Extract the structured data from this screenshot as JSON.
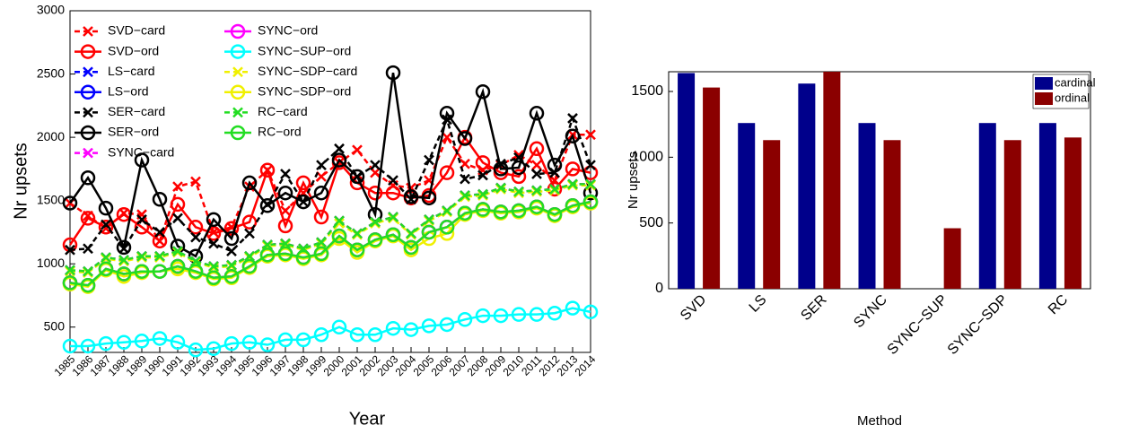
{
  "chart_data": [
    {
      "type": "line",
      "xlabel": "Year",
      "ylabel": "Nr upsets",
      "x": [
        1985,
        1986,
        1987,
        1988,
        1989,
        1990,
        1991,
        1992,
        1993,
        1994,
        1995,
        1996,
        1997,
        1998,
        1999,
        2000,
        2001,
        2002,
        2003,
        2004,
        2005,
        2006,
        2007,
        2008,
        2009,
        2010,
        2011,
        2012,
        2013,
        2014
      ],
      "xlim": [
        1985,
        2014
      ],
      "xticks": [
        1985,
        1986,
        1987,
        1988,
        1989,
        1990,
        1991,
        1992,
        1993,
        1994,
        1995,
        1996,
        1997,
        1998,
        1999,
        2000,
        2001,
        2002,
        2003,
        2004,
        2005,
        2006,
        2007,
        2008,
        2009,
        2010,
        2011,
        2012,
        2013,
        2014
      ],
      "ylim": [
        300,
        3000
      ],
      "yticks": [
        500,
        1000,
        1500,
        2000,
        2500,
        3000
      ],
      "legend": "upper left",
      "series": [
        {
          "name": "SVD−card",
          "color": "#ff0000",
          "dashed": true,
          "marker": "x",
          "values": [
            1480,
            1380,
            1280,
            1400,
            1390,
            1180,
            1610,
            1650,
            1250,
            1290,
            1610,
            1740,
            1420,
            1560,
            1690,
            1800,
            1900,
            1720,
            1620,
            1600,
            1660,
            2000,
            1790,
            1740,
            1780,
            1860,
            1780,
            1660,
            2020,
            2020
          ]
        },
        {
          "name": "SVD−ord",
          "color": "#ff0000",
          "dashed": false,
          "marker": "o",
          "values": [
            1150,
            1360,
            1290,
            1390,
            1290,
            1180,
            1470,
            1290,
            1240,
            1280,
            1330,
            1740,
            1300,
            1640,
            1370,
            1800,
            1640,
            1560,
            1560,
            1520,
            1540,
            1720,
            2000,
            1800,
            1720,
            1690,
            1910,
            1590,
            1750,
            1720
          ]
        },
        {
          "name": "LS−card",
          "color": "#0000ff",
          "dashed": true,
          "marker": "x",
          "values": [
            950,
            940,
            1050,
            1030,
            1060,
            1060,
            1100,
            1020,
            980,
            990,
            1060,
            1150,
            1160,
            1120,
            1170,
            1340,
            1240,
            1330,
            1370,
            1240,
            1350,
            1420,
            1540,
            1550,
            1600,
            1570,
            1580,
            1590,
            1630,
            1630
          ]
        },
        {
          "name": "LS−ord",
          "color": "#0000ff",
          "dashed": false,
          "marker": "o",
          "values": [
            850,
            830,
            960,
            920,
            940,
            940,
            980,
            940,
            890,
            900,
            980,
            1070,
            1080,
            1050,
            1080,
            1220,
            1110,
            1190,
            1230,
            1130,
            1250,
            1290,
            1400,
            1430,
            1410,
            1420,
            1450,
            1390,
            1460,
            1490
          ]
        },
        {
          "name": "SER−card",
          "color": "#000000",
          "dashed": true,
          "marker": "x",
          "values": [
            1110,
            1120,
            1310,
            1120,
            1350,
            1250,
            1360,
            1210,
            1160,
            1100,
            1240,
            1470,
            1710,
            1490,
            1780,
            1910,
            1690,
            1780,
            1660,
            1510,
            1820,
            2140,
            1670,
            1700,
            1790,
            1840,
            1710,
            1720,
            2150,
            1780
          ]
        },
        {
          "name": "SER−ord",
          "color": "#000000",
          "dashed": false,
          "marker": "o",
          "values": [
            1480,
            1680,
            1440,
            1130,
            1820,
            1510,
            1140,
            1060,
            1350,
            1200,
            1640,
            1460,
            1560,
            1490,
            1560,
            1820,
            1690,
            1390,
            2510,
            1530,
            1520,
            2190,
            1990,
            2360,
            1750,
            1760,
            2190,
            1780,
            2010,
            1560
          ]
        },
        {
          "name": "SYNC−card",
          "color": "#ff00ff",
          "dashed": true,
          "marker": "x",
          "values": [
            950,
            940,
            1050,
            1030,
            1060,
            1060,
            1100,
            1020,
            980,
            990,
            1060,
            1150,
            1160,
            1120,
            1170,
            1340,
            1240,
            1330,
            1370,
            1240,
            1350,
            1420,
            1540,
            1550,
            1600,
            1570,
            1580,
            1590,
            1630,
            1630
          ]
        },
        {
          "name": "SYNC−ord",
          "color": "#ff00ff",
          "dashed": false,
          "marker": "o",
          "values": [
            850,
            830,
            960,
            920,
            940,
            940,
            980,
            940,
            890,
            900,
            980,
            1070,
            1080,
            1050,
            1080,
            1220,
            1110,
            1190,
            1230,
            1130,
            1250,
            1290,
            1400,
            1430,
            1410,
            1420,
            1450,
            1390,
            1460,
            1490
          ]
        },
        {
          "name": "SYNC−SUP−ord",
          "color": "#00ffff",
          "dashed": false,
          "marker": "o",
          "values": [
            350,
            350,
            370,
            380,
            390,
            410,
            380,
            320,
            330,
            370,
            380,
            360,
            400,
            400,
            440,
            500,
            440,
            440,
            490,
            480,
            510,
            520,
            560,
            590,
            590,
            600,
            600,
            610,
            650,
            620
          ]
        },
        {
          "name": "SYNC−SDP−card",
          "color": "#f0f000",
          "dashed": true,
          "marker": "x",
          "values": [
            940,
            930,
            1040,
            1020,
            1050,
            1050,
            1090,
            1010,
            970,
            980,
            1050,
            1140,
            1150,
            1110,
            1160,
            1320,
            1230,
            1320,
            1360,
            1230,
            1340,
            1410,
            1530,
            1540,
            1590,
            1560,
            1570,
            1580,
            1620,
            1620
          ]
        },
        {
          "name": "SYNC−SDP−ord",
          "color": "#f0f000",
          "dashed": false,
          "marker": "o",
          "values": [
            840,
            820,
            950,
            900,
            930,
            940,
            960,
            930,
            880,
            890,
            970,
            1060,
            1070,
            1040,
            1070,
            1200,
            1090,
            1180,
            1220,
            1110,
            1200,
            1240,
            1390,
            1420,
            1400,
            1410,
            1440,
            1380,
            1450,
            1480
          ]
        },
        {
          "name": "RC−card",
          "color": "#22dd22",
          "dashed": true,
          "marker": "x",
          "values": [
            950,
            940,
            1050,
            1030,
            1060,
            1060,
            1100,
            1020,
            980,
            990,
            1060,
            1150,
            1160,
            1120,
            1170,
            1340,
            1240,
            1330,
            1370,
            1240,
            1350,
            1420,
            1540,
            1550,
            1600,
            1570,
            1580,
            1590,
            1630,
            1630
          ]
        },
        {
          "name": "RC−ord",
          "color": "#22dd22",
          "dashed": false,
          "marker": "o",
          "values": [
            850,
            830,
            960,
            920,
            940,
            940,
            980,
            940,
            890,
            900,
            980,
            1070,
            1080,
            1050,
            1080,
            1220,
            1110,
            1190,
            1230,
            1130,
            1250,
            1290,
            1400,
            1430,
            1410,
            1420,
            1450,
            1390,
            1460,
            1490
          ]
        }
      ]
    },
    {
      "type": "bar",
      "xlabel": "Method",
      "ylabel": "Nr upsets",
      "categories": [
        "SVD",
        "LS",
        "SER",
        "SYNC",
        "SYNC−SUP",
        "SYNC−SDP",
        "RC"
      ],
      "ylim": [
        0,
        1650
      ],
      "yticks": [
        0,
        500,
        1000,
        1500
      ],
      "legend": "upper right",
      "series": [
        {
          "name": "cardinal",
          "color": "#00008b",
          "values": [
            1640,
            1260,
            1560,
            1260,
            null,
            1260,
            1260
          ]
        },
        {
          "name": "ordinal",
          "color": "#8b0000",
          "values": [
            1530,
            1130,
            1650,
            1130,
            460,
            1130,
            1150
          ]
        }
      ]
    }
  ]
}
